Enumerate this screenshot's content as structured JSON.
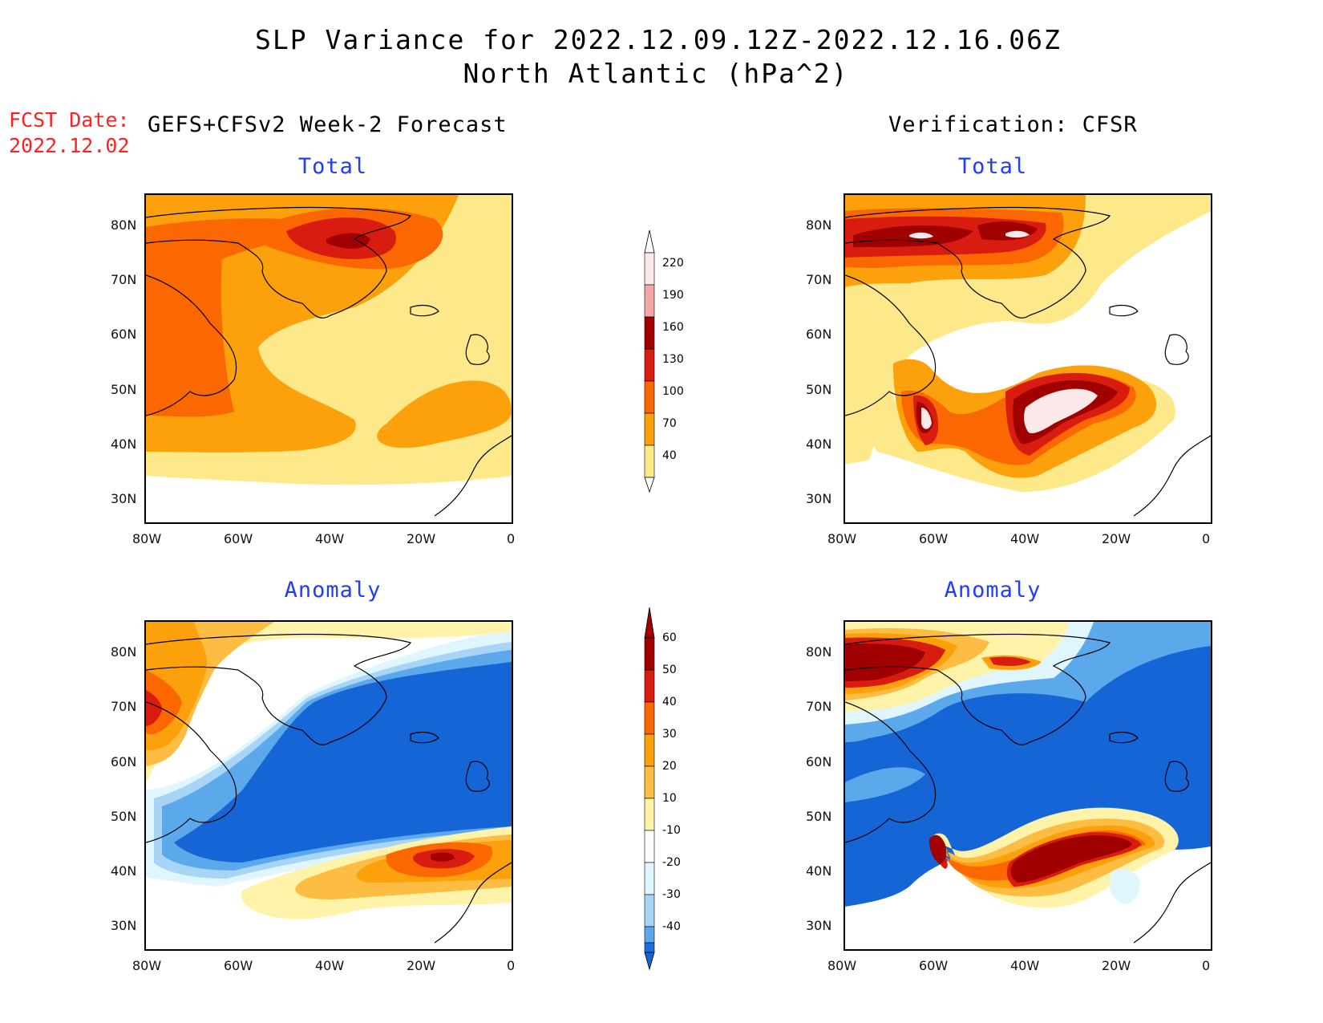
{
  "title": {
    "line1": "SLP Variance for 2022.12.09.12Z-2022.12.16.06Z",
    "line2": "North Atlantic (hPa^2)"
  },
  "fcst": {
    "label": "FCST Date:",
    "date": "2022.12.02"
  },
  "columns": {
    "left": "GEFS+CFSv2 Week-2 Forecast",
    "right": "Verification: CFSR"
  },
  "panels": {
    "tl": {
      "title": "Total"
    },
    "tr": {
      "title": "Total"
    },
    "bl": {
      "title": "Anomaly"
    },
    "br": {
      "title": "Anomaly"
    }
  },
  "axes": {
    "lat_labels": [
      "80N",
      "70N",
      "60N",
      "50N",
      "40N",
      "30N"
    ],
    "lon_labels": [
      "80W",
      "60W",
      "40W",
      "20W",
      "0"
    ]
  },
  "colorbars": {
    "total": {
      "levels": [
        "220",
        "190",
        "160",
        "130",
        "100",
        "70",
        "40"
      ],
      "colors": [
        "#fbe8e8",
        "#f4a6a8",
        "#a00000",
        "#d81d10",
        "#fb6700",
        "#fca00c",
        "#fde98a"
      ]
    },
    "anomaly": {
      "levels": [
        "60",
        "50",
        "40",
        "30",
        "20",
        "10",
        "-10",
        "-20",
        "-30",
        "-40"
      ],
      "colors": [
        "#a00000",
        "#d81d10",
        "#fb6700",
        "#fca00c",
        "#fdbc42",
        "#fef3a8",
        "#ffffff",
        "#dff6ff",
        "#a8d5f6",
        "#5ba8ea",
        "#1a6ee0",
        "#1565d6"
      ]
    }
  },
  "colors": {
    "title_text": "#000000",
    "panel_title": "#1f3cff",
    "fcst_text": "#ff2020"
  }
}
